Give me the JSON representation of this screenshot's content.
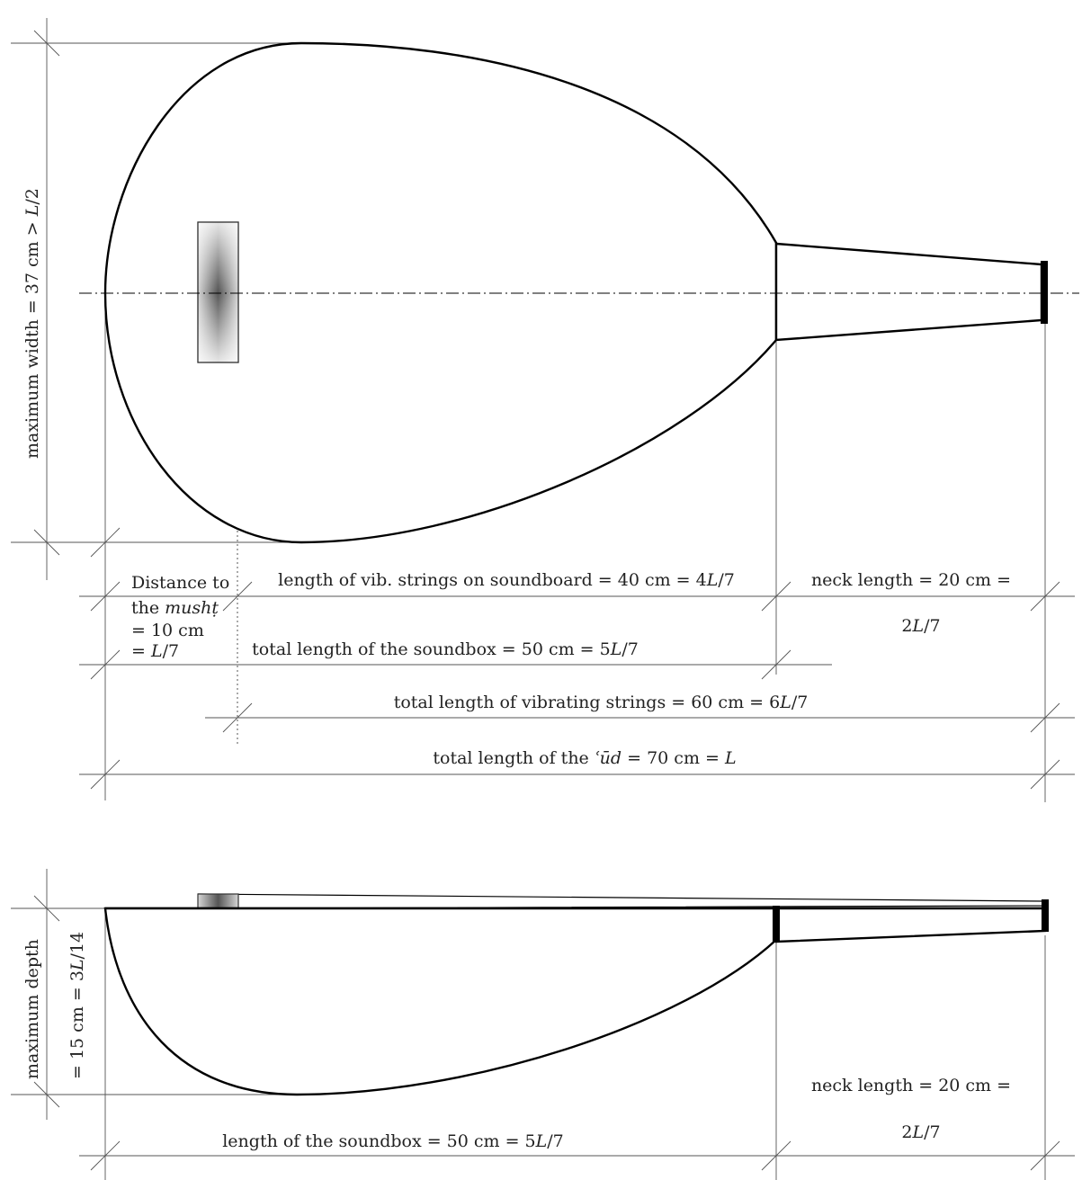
{
  "top_view": {
    "max_width": {
      "pre": "maximum width = 37 cm > ",
      "var": "L",
      "post": "/2"
    },
    "mushd_distance": {
      "line1": "Distance to",
      "line2_pre": "the ",
      "line2_var": "mushṭ",
      "line3": "= 10 cm",
      "line4_pre": "= ",
      "line4_var": "L",
      "line4_post": "/7"
    },
    "vib_soundboard": {
      "pre": "length of vib. strings on soundboard = 40 cm = 4",
      "var": "L",
      "post": "/7"
    },
    "neck_length": {
      "text": "neck length = 20 cm =",
      "pre": "2",
      "var": "L",
      "post": "/7"
    },
    "soundbox_total": {
      "pre": "total length of the soundbox = 50 cm = 5",
      "var": "L",
      "post": "/7"
    },
    "vib_total": {
      "pre": "total length of vibrating strings = 60 cm = 6",
      "var": "L",
      "post": "/7"
    },
    "ud_total": {
      "pre": "total length of the ",
      "var": "ʿūd",
      "mid": " = 70 cm = ",
      "var2": "L"
    }
  },
  "side_view": {
    "max_depth": {
      "line1": "maximum depth",
      "line2_pre": "= 15 cm = 3",
      "line2_var": "L",
      "line2_post": "/14"
    },
    "neck_length": {
      "text": "neck length = 20 cm =",
      "pre": "2",
      "var": "L",
      "post": "/7"
    },
    "soundbox_length": {
      "pre": "length of the soundbox = 50 cm = 5",
      "var": "L",
      "post": "/7"
    }
  }
}
